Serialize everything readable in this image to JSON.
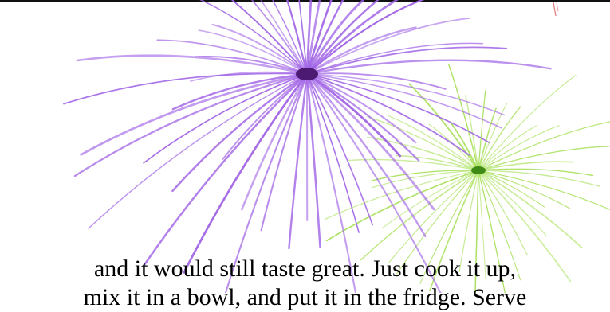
{
  "caption_lines": [
    "and it would still taste great. Just cook it up,",
    "mix it in a bowl, and put it in the fridge. Serve"
  ],
  "fireworks": [
    {
      "name": "purple-firework",
      "color": "#a164e6",
      "core_color": "#4d1a73",
      "rays": 56
    },
    {
      "name": "green-firework",
      "color": "#a8e05a",
      "core_color": "#3f8a14",
      "rays": 44
    }
  ],
  "background_color": "#ffffff"
}
